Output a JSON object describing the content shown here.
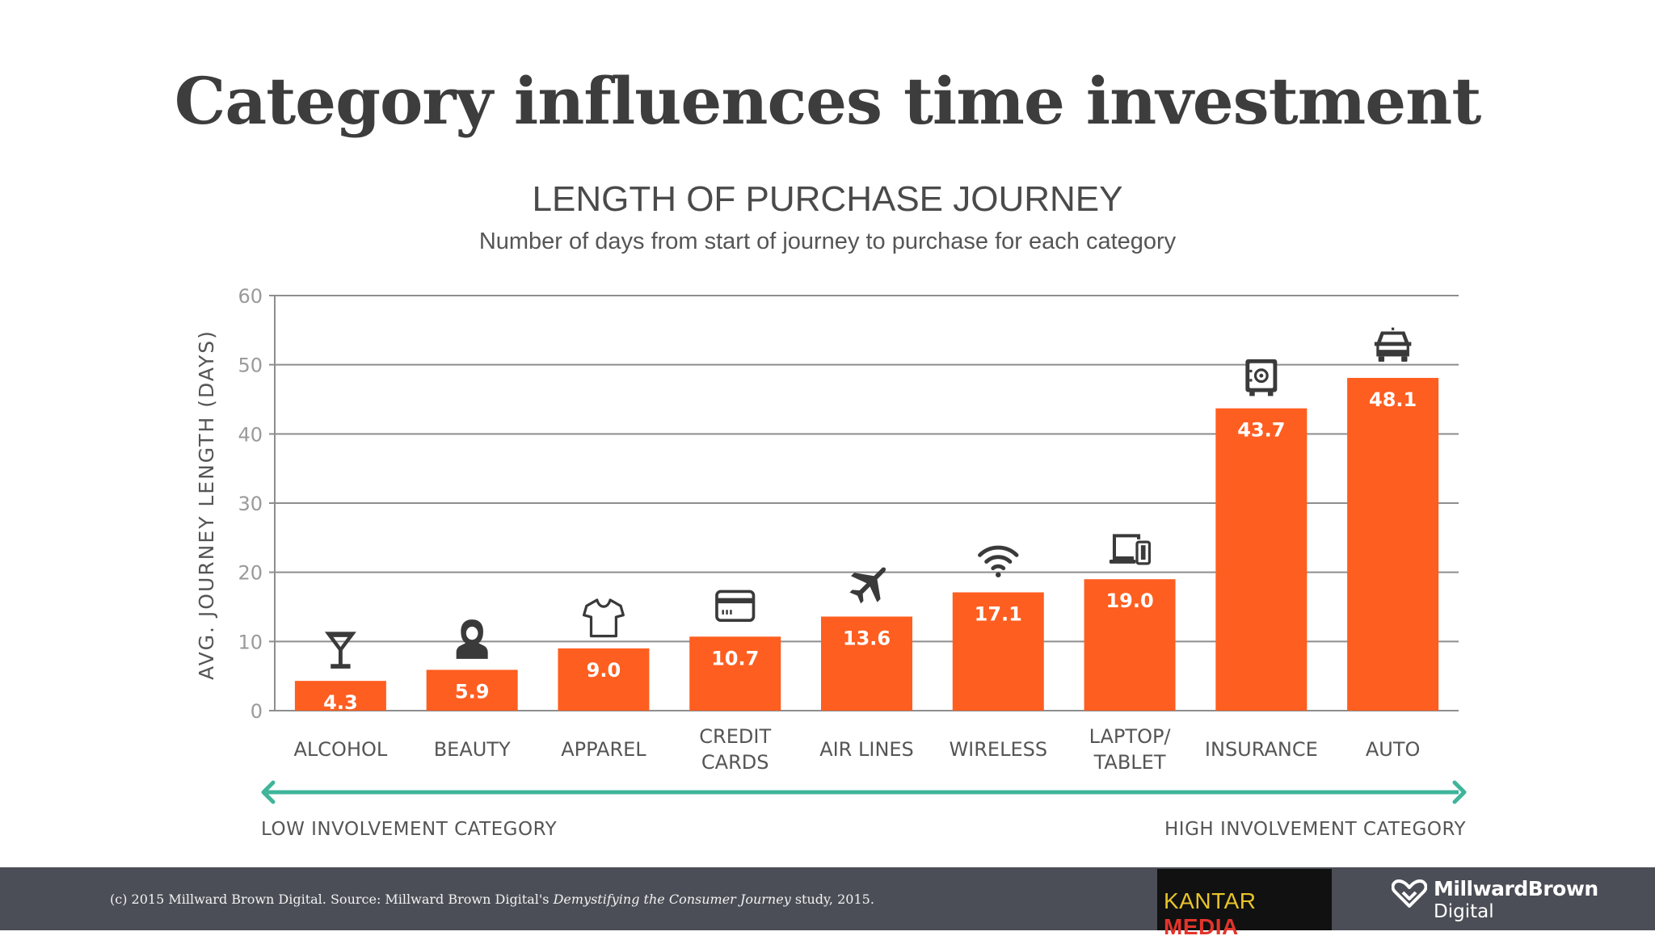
{
  "slide": {
    "title": "Category influences time investment"
  },
  "chart_data": {
    "type": "bar",
    "title": "LENGTH OF PURCHASE JOURNEY",
    "subtitle": "Number of days from start of journey to purchase for each category",
    "ylabel": "AVG. JOURNEY LENGTH (DAYS)",
    "xlabel": "",
    "ylim": [
      0,
      60
    ],
    "yticks": [
      0,
      10,
      20,
      30,
      40,
      50,
      60
    ],
    "grid": true,
    "bar_color": "#fe5e20",
    "categories": [
      {
        "lines": [
          "ALCOHOL"
        ],
        "icon": "cocktail-glass-icon"
      },
      {
        "lines": [
          "BEAUTY"
        ],
        "icon": "woman-silhouette-icon"
      },
      {
        "lines": [
          "APPAREL"
        ],
        "icon": "t-shirt-icon"
      },
      {
        "lines": [
          "CREDIT",
          "CARDS"
        ],
        "icon": "credit-card-icon"
      },
      {
        "lines": [
          "AIR LINES"
        ],
        "icon": "airplane-icon"
      },
      {
        "lines": [
          "WIRELESS"
        ],
        "icon": "wifi-icon"
      },
      {
        "lines": [
          "LAPTOP/",
          "TABLET"
        ],
        "icon": "laptop-tablet-icon"
      },
      {
        "lines": [
          "INSURANCE"
        ],
        "icon": "safe-icon"
      },
      {
        "lines": [
          "AUTO"
        ],
        "icon": "car-icon"
      }
    ],
    "values": [
      4.3,
      5.9,
      9.0,
      10.7,
      13.6,
      17.1,
      19.0,
      43.7,
      48.1
    ],
    "value_labels": [
      "4.3",
      "5.9",
      "9.0",
      "10.7",
      "13.6",
      "17.1",
      "19.0",
      "43.7",
      "48.1"
    ],
    "scale": {
      "low_label": "LOW INVOLVEMENT CATEGORY",
      "high_label": "HIGH INVOLVEMENT CATEGORY",
      "arrow_color": "#3fb59a"
    }
  },
  "footer": {
    "note_prefix": "(c) 2015 Millward Brown Digital. Source: Millward Brown Digital's ",
    "note_study": "Demystifying the Consumer Journey",
    "note_suffix": " study, 2015.",
    "kantar_word1": "KANTAR",
    "kantar_word2": "MEDIA",
    "mbd_name": "MillwardBrown",
    "mbd_sub": "Digital"
  }
}
